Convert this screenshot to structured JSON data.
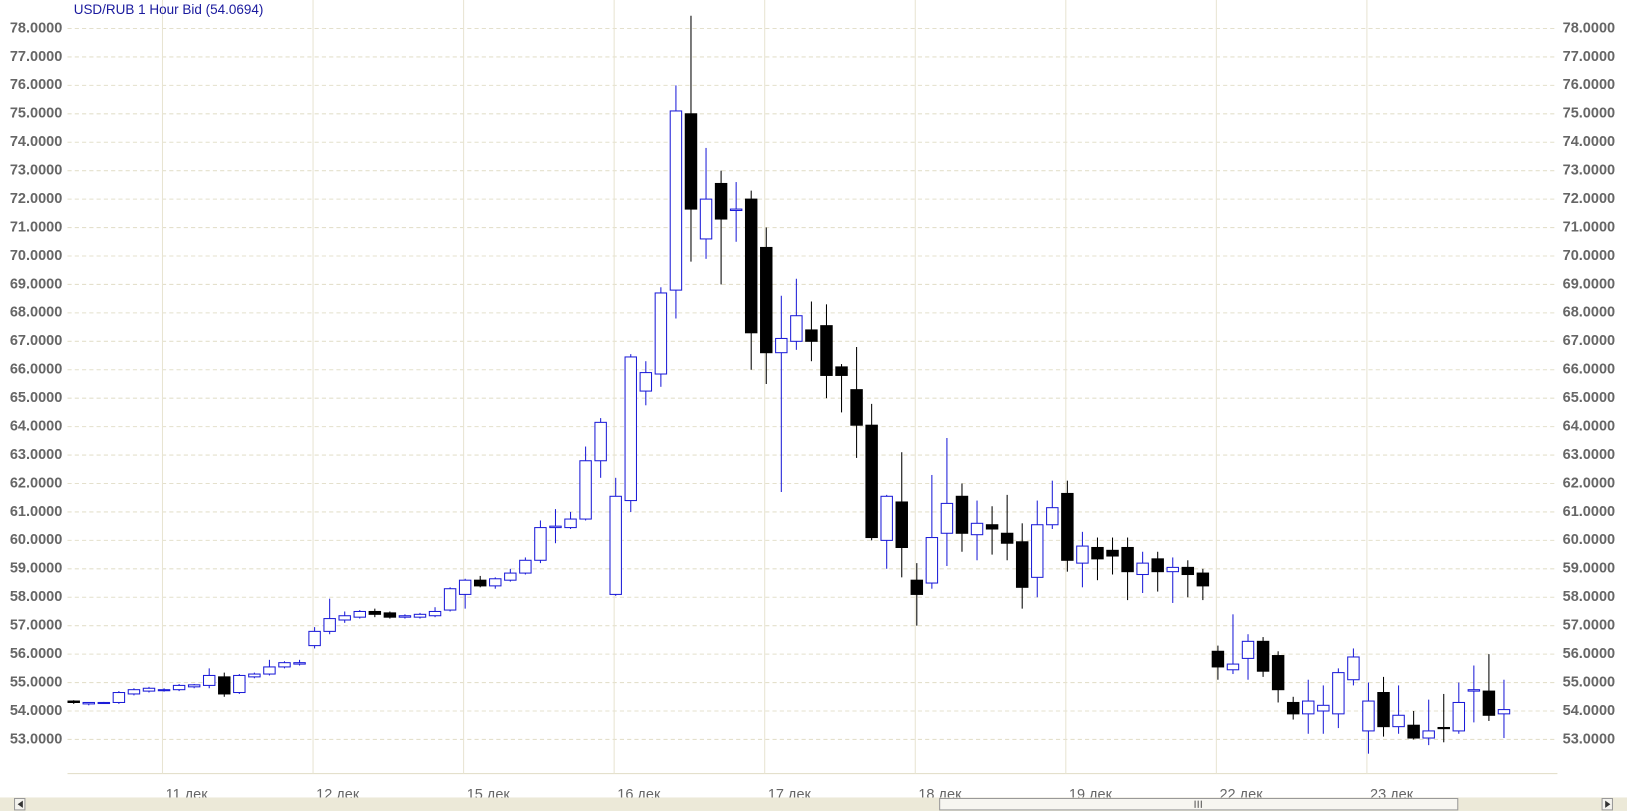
{
  "chart_data": {
    "type": "candlestick",
    "title": "USD/RUB 1 Hour Bid (54.0694)",
    "categories": [
      null,
      null,
      null,
      null,
      null,
      null,
      "11 дек",
      null,
      null,
      null,
      null,
      null,
      null,
      null,
      null,
      null,
      "12 дек",
      null,
      null,
      null,
      null,
      null,
      null,
      null,
      null,
      null,
      "15 дек",
      null,
      null,
      null,
      null,
      null,
      null,
      null,
      null,
      null,
      "16 дек",
      null,
      null,
      null,
      null,
      null,
      null,
      null,
      null,
      null,
      "17 дек",
      null,
      null,
      null,
      null,
      null,
      null,
      null,
      null,
      null,
      "18 дек",
      null,
      null,
      null,
      null,
      null,
      null,
      null,
      null,
      null,
      "19 дек",
      null,
      null,
      null,
      null,
      null,
      null,
      null,
      null,
      null,
      "22 дек",
      null,
      null,
      null,
      null,
      null,
      null,
      null,
      null,
      null,
      "23 дек",
      null,
      null,
      null,
      null,
      null,
      null,
      null,
      null,
      null
    ],
    "open": [
      54.35,
      54.25,
      54.28,
      54.3,
      54.6,
      54.7,
      54.72,
      54.75,
      54.85,
      54.9,
      55.2,
      54.65,
      55.2,
      55.3,
      55.55,
      55.65,
      56.3,
      56.8,
      57.2,
      57.3,
      57.5,
      57.45,
      57.3,
      57.3,
      57.35,
      57.55,
      58.1,
      58.6,
      58.4,
      58.6,
      58.85,
      59.3,
      60.45,
      60.45,
      60.75,
      62.8,
      58.1,
      61.4,
      65.25,
      65.85,
      68.8,
      75.0,
      70.6,
      72.55,
      71.6,
      72.0,
      70.3,
      66.6,
      67.0,
      67.4,
      67.55,
      66.1,
      65.3,
      64.05,
      60.0,
      61.35,
      58.6,
      58.5,
      60.25,
      61.55,
      60.2,
      60.55,
      60.25,
      59.95,
      58.7,
      60.55,
      61.65,
      59.2,
      59.75,
      59.65,
      59.75,
      58.8,
      59.35,
      58.9,
      59.05,
      58.85,
      56.1,
      55.45,
      55.85,
      56.45,
      55.95,
      54.3,
      53.9,
      54.0,
      53.9,
      55.1,
      53.3,
      54.65,
      53.45,
      53.5,
      53.05,
      53.42,
      53.3,
      54.7,
      54.7,
      53.9
    ],
    "high": [
      54.38,
      54.3,
      54.32,
      54.7,
      54.8,
      54.85,
      54.8,
      54.95,
      54.95,
      55.5,
      55.35,
      55.3,
      55.35,
      55.8,
      55.75,
      55.8,
      56.95,
      57.95,
      57.5,
      57.55,
      57.6,
      57.5,
      57.4,
      57.45,
      57.65,
      58.35,
      58.65,
      58.75,
      58.7,
      59.0,
      59.4,
      60.7,
      61.1,
      61.0,
      63.3,
      64.3,
      62.2,
      66.55,
      66.3,
      68.9,
      76.0,
      78.45,
      73.8,
      73.0,
      72.6,
      72.3,
      71.0,
      68.6,
      69.2,
      68.4,
      68.3,
      66.2,
      66.8,
      64.8,
      61.6,
      63.1,
      59.2,
      62.3,
      63.6,
      62.0,
      61.4,
      61.2,
      61.6,
      60.6,
      61.4,
      62.1,
      62.1,
      60.3,
      60.1,
      60.1,
      60.1,
      59.6,
      59.6,
      59.4,
      59.3,
      59.0,
      56.3,
      57.4,
      56.7,
      56.6,
      56.1,
      54.5,
      55.1,
      54.9,
      55.5,
      56.2,
      55.0,
      55.2,
      54.9,
      54.0,
      54.4,
      54.6,
      55.0,
      55.6,
      56.0,
      55.1
    ],
    "low": [
      54.25,
      54.2,
      54.25,
      54.25,
      54.55,
      54.65,
      54.68,
      54.7,
      54.8,
      54.8,
      54.5,
      54.6,
      55.15,
      55.25,
      55.5,
      55.6,
      56.2,
      56.7,
      57.1,
      57.25,
      57.3,
      57.25,
      57.25,
      57.25,
      57.3,
      57.5,
      57.6,
      58.35,
      58.3,
      58.55,
      58.8,
      59.2,
      59.9,
      60.4,
      60.7,
      62.2,
      58.05,
      61.0,
      64.75,
      65.4,
      67.8,
      69.8,
      69.9,
      69.0,
      70.5,
      66.0,
      65.5,
      61.7,
      66.7,
      66.3,
      65.0,
      64.5,
      62.9,
      60.0,
      59.0,
      58.7,
      57.0,
      58.3,
      59.1,
      59.6,
      59.3,
      59.5,
      59.3,
      57.6,
      58.0,
      60.4,
      58.9,
      58.35,
      58.6,
      58.8,
      57.9,
      58.15,
      58.2,
      57.8,
      58.0,
      57.9,
      55.1,
      55.3,
      55.1,
      55.2,
      54.3,
      53.7,
      53.2,
      53.2,
      53.4,
      54.9,
      52.5,
      53.1,
      53.2,
      53.0,
      52.8,
      52.9,
      53.2,
      53.6,
      53.65,
      53.05
    ],
    "close": [
      54.3,
      54.3,
      54.3,
      54.65,
      54.75,
      54.8,
      54.75,
      54.9,
      54.92,
      55.25,
      54.6,
      55.25,
      55.3,
      55.55,
      55.7,
      55.7,
      56.8,
      57.25,
      57.35,
      57.5,
      57.4,
      57.3,
      57.35,
      57.4,
      57.5,
      58.3,
      58.6,
      58.4,
      58.65,
      58.85,
      59.3,
      60.45,
      60.5,
      60.75,
      62.8,
      64.15,
      61.55,
      66.45,
      65.9,
      68.7,
      75.1,
      71.65,
      72.0,
      71.3,
      71.65,
      67.3,
      66.6,
      67.1,
      67.9,
      67.0,
      65.8,
      65.8,
      64.05,
      60.1,
      61.55,
      59.75,
      58.1,
      60.1,
      61.3,
      60.25,
      60.6,
      60.4,
      59.9,
      58.35,
      60.55,
      61.15,
      59.3,
      59.8,
      59.35,
      59.45,
      58.9,
      59.2,
      58.9,
      59.05,
      58.8,
      58.4,
      55.55,
      55.65,
      56.45,
      55.4,
      54.75,
      53.9,
      54.35,
      54.2,
      55.35,
      55.9,
      54.35,
      53.45,
      53.85,
      53.05,
      53.3,
      53.38,
      54.3,
      54.75,
      53.85,
      54.05
    ],
    "up_color": "#1c1cd8",
    "down_color": "#000000",
    "grid": true,
    "ylim": [
      51.8,
      79
    ],
    "yticks": [
      {
        "value": 53,
        "label": "53.0000"
      },
      {
        "value": 54,
        "label": "54.0000"
      },
      {
        "value": 55,
        "label": "55.0000"
      },
      {
        "value": 56,
        "label": "56.0000"
      },
      {
        "value": 57,
        "label": "57.0000"
      },
      {
        "value": 58,
        "label": "58.0000"
      },
      {
        "value": 59,
        "label": "59.0000"
      },
      {
        "value": 60,
        "label": "60.0000"
      },
      {
        "value": 61,
        "label": "61.0000"
      },
      {
        "value": 62,
        "label": "62.0000"
      },
      {
        "value": 63,
        "label": "63.0000"
      },
      {
        "value": 64,
        "label": "64.0000"
      },
      {
        "value": 65,
        "label": "65.0000"
      },
      {
        "value": 66,
        "label": "66.0000"
      },
      {
        "value": 67,
        "label": "67.0000"
      },
      {
        "value": 68,
        "label": "68.0000"
      },
      {
        "value": 69,
        "label": "69.0000"
      },
      {
        "value": 70,
        "label": "70.0000"
      },
      {
        "value": 71,
        "label": "71.0000"
      },
      {
        "value": 72,
        "label": "72.0000"
      },
      {
        "value": 73,
        "label": "73.0000"
      },
      {
        "value": 74,
        "label": "74.0000"
      },
      {
        "value": 75,
        "label": "75.0000"
      },
      {
        "value": 76,
        "label": "76.0000"
      },
      {
        "value": 77,
        "label": "77.0000"
      },
      {
        "value": 78,
        "label": "78.0000"
      }
    ]
  }
}
